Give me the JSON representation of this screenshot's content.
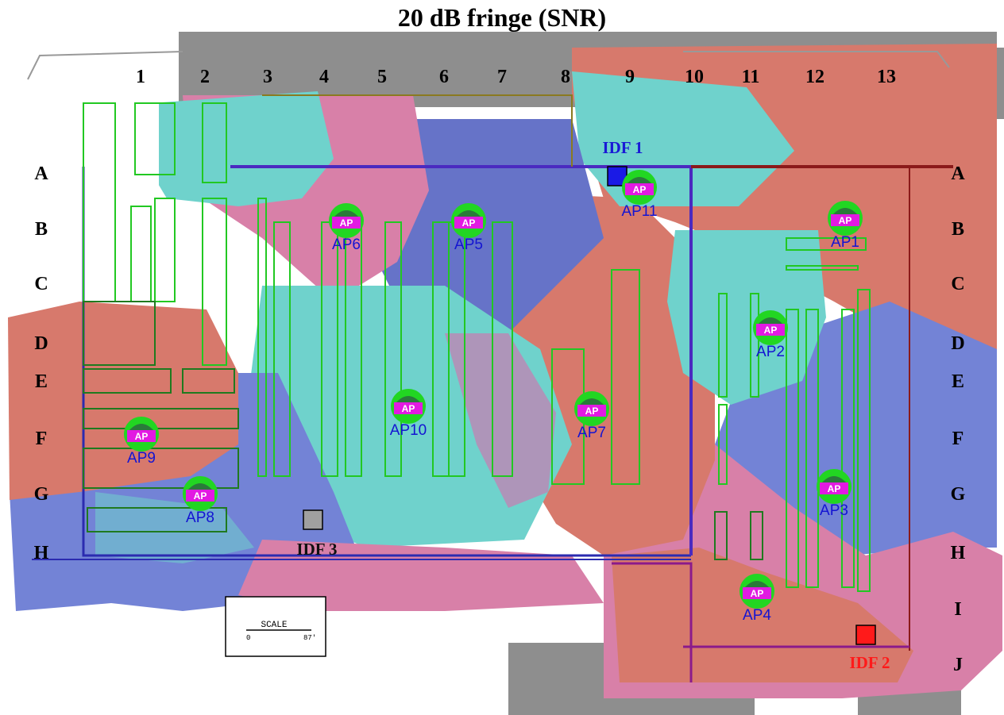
{
  "title": "20 dB fringe (SNR)",
  "columns": [
    "1",
    "2",
    "3",
    "4",
    "5",
    "6",
    "7",
    "8",
    "9",
    "10",
    "11",
    "12",
    "13"
  ],
  "rows_left": [
    "A",
    "B",
    "C",
    "D",
    "E",
    "F",
    "G",
    "H"
  ],
  "rows_right": [
    "A",
    "B",
    "C",
    "D",
    "E",
    "F",
    "G",
    "H",
    "I",
    "J"
  ],
  "access_points": [
    {
      "name": "AP1",
      "badge": "AP"
    },
    {
      "name": "AP2",
      "badge": "AP"
    },
    {
      "name": "AP3",
      "badge": "AP"
    },
    {
      "name": "AP4",
      "badge": "AP"
    },
    {
      "name": "AP5",
      "badge": "AP"
    },
    {
      "name": "AP6",
      "badge": "AP"
    },
    {
      "name": "AP7",
      "badge": "AP"
    },
    {
      "name": "AP8",
      "badge": "AP"
    },
    {
      "name": "AP9",
      "badge": "AP"
    },
    {
      "name": "AP10",
      "badge": "AP"
    },
    {
      "name": "AP11",
      "badge": "AP"
    }
  ],
  "idfs": [
    {
      "name": "IDF 1",
      "color": "#1a1ad6"
    },
    {
      "name": "IDF 2",
      "color": "#ff1a1a"
    },
    {
      "name": "IDF 3",
      "color": "#111111"
    }
  ],
  "scale": {
    "label": "SCALE",
    "start": "0",
    "end": "87'"
  },
  "colors": {
    "coverage_red": "#d7796c",
    "coverage_cyan": "#6fd2cc",
    "coverage_blue": "#7383d6",
    "coverage_pink": "#d880a8",
    "no_signal": "#8c8c8c",
    "ap_green": "#22d622",
    "ap_magenta": "#e21ae2"
  }
}
